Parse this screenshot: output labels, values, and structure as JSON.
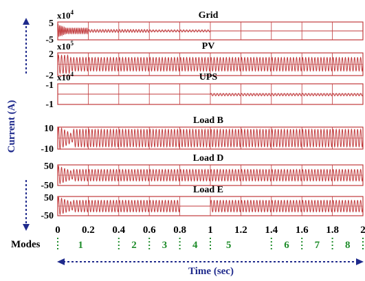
{
  "chart_data": [
    {
      "type": "line",
      "title": "Grid",
      "multiplier": "x10",
      "exponent": "4",
      "yticks": [
        "5",
        "-5"
      ],
      "ylim": [
        -5,
        5
      ],
      "xlim": [
        0,
        2
      ],
      "series": [
        {
          "segments": [
            {
              "x": [
                0,
                0.06
              ],
              "amplitude": 3.5,
              "cycles": 6,
              "decay": 0.6
            },
            {
              "x": [
                0.06,
                0.2
              ],
              "amplitude": 1.6,
              "cycles": 12
            },
            {
              "x": [
                0.2,
                0.6
              ],
              "amplitude": 0.8,
              "cycles": 22
            },
            {
              "x": [
                0.6,
                1.0
              ],
              "amplitude": 0.6,
              "cycles": 20
            },
            {
              "x": [
                1.0,
                2.0
              ],
              "amplitude": 0.0,
              "cycles": 0
            }
          ]
        }
      ]
    },
    {
      "type": "line",
      "title": "PV",
      "multiplier": "x10",
      "exponent": "5",
      "yticks": [
        "2",
        "-2"
      ],
      "ylim": [
        -2,
        2
      ],
      "xlim": [
        0,
        2
      ],
      "series": [
        {
          "segments": [
            {
              "x": [
                0,
                0.08
              ],
              "amplitude": 1.6,
              "cycles": 4
            },
            {
              "x": [
                0.08,
                2.0
              ],
              "amplitude": 1.2,
              "cycles": 96
            }
          ]
        }
      ]
    },
    {
      "type": "line",
      "title": "UPS",
      "multiplier": "x10",
      "exponent": "4",
      "yticks": [
        "-1",
        "-1"
      ],
      "ylim": [
        -1,
        1
      ],
      "xlim": [
        0,
        2
      ],
      "series": [
        {
          "segments": [
            {
              "x": [
                0,
                1.0
              ],
              "amplitude": 0.0,
              "cycles": 0,
              "offset": 0.0
            },
            {
              "x": [
                1.0,
                2.0
              ],
              "amplitude": 0.12,
              "cycles": 50,
              "offset": -0.05
            }
          ]
        }
      ]
    },
    {
      "type": "line",
      "title": "Load B",
      "yticks": [
        "10",
        "-10"
      ],
      "ylim": [
        -10,
        10
      ],
      "xlim": [
        0,
        2
      ],
      "series": [
        {
          "segments": [
            {
              "x": [
                0,
                0.1
              ],
              "amplitude": 11,
              "cycles": 5,
              "decay": 0.7
            },
            {
              "x": [
                0.1,
                2.0
              ],
              "amplitude": 8,
              "cycles": 95
            }
          ]
        }
      ]
    },
    {
      "type": "line",
      "title": "Load D",
      "yticks": [
        "50",
        "-50"
      ],
      "ylim": [
        -50,
        50
      ],
      "xlim": [
        0,
        2
      ],
      "series": [
        {
          "segments": [
            {
              "x": [
                0,
                0.1
              ],
              "amplitude": 45,
              "cycles": 5,
              "decay": 0.6
            },
            {
              "x": [
                0.1,
                2.0
              ],
              "amplitude": 28,
              "cycles": 95
            }
          ]
        }
      ]
    },
    {
      "type": "line",
      "title": "Load E",
      "yticks": [
        "50",
        "-50"
      ],
      "ylim": [
        -50,
        50
      ],
      "xlim": [
        0,
        2
      ],
      "series": [
        {
          "segments": [
            {
              "x": [
                0,
                0.1
              ],
              "amplitude": 48,
              "cycles": 5,
              "decay": 0.6
            },
            {
              "x": [
                0.1,
                0.8
              ],
              "amplitude": 30,
              "cycles": 35
            },
            {
              "x": [
                0.8,
                1.0
              ],
              "amplitude": 0.0,
              "cycles": 0
            },
            {
              "x": [
                1.0,
                2.0
              ],
              "amplitude": 30,
              "cycles": 50
            }
          ]
        }
      ]
    }
  ],
  "xticks": [
    "0",
    "0.2",
    "0.4",
    "0.6",
    "0.8",
    "1",
    "1.2",
    "1.4",
    "1.6",
    "1.8",
    "2"
  ],
  "xtick_values": [
    0,
    0.2,
    0.4,
    0.6,
    0.8,
    1,
    1.2,
    1.4,
    1.6,
    1.8,
    2
  ],
  "vertical_gridlines": [
    0.2,
    0.4,
    0.6,
    0.8,
    1.0,
    1.2,
    1.4,
    1.6,
    1.8
  ],
  "ylabel": "Current (A)",
  "xlabel": "Time (sec)",
  "modes_label": "Modes",
  "modes": [
    "1",
    "2",
    "3",
    "4",
    "5",
    "6",
    "7",
    "8"
  ],
  "colors": {
    "trace": "#c0393b",
    "frame": "#c0393b",
    "text": "#000000",
    "axis_label": "#1f2a8c",
    "modes": "#1e8c2a",
    "arrow": "#1f2a8c"
  }
}
